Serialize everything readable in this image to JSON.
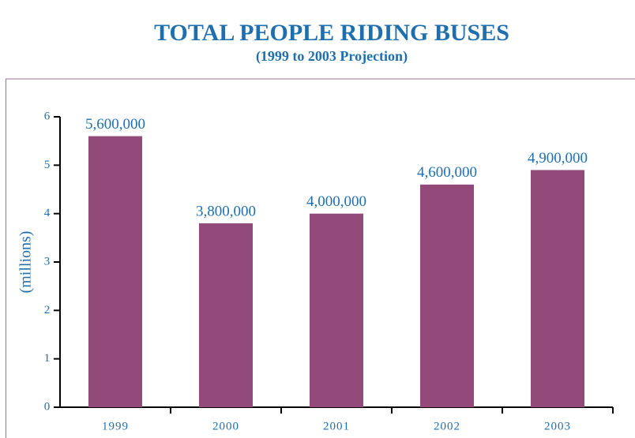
{
  "chart_data": {
    "type": "bar",
    "title": "TOTAL PEOPLE RIDING BUSES",
    "subtitle": "(1999 to 2003 Projection)",
    "ylabel": "(millions)",
    "categories": [
      "1999",
      "2000",
      "2001",
      "2002",
      "2003"
    ],
    "values": [
      5.6,
      3.8,
      4.0,
      4.6,
      4.9
    ],
    "value_labels": [
      "5,600,000",
      "3,800,000",
      "4,000,000",
      "4,600,000",
      "4,900,000"
    ],
    "color": "#924a7a",
    "ylim": [
      0,
      6
    ],
    "yticks": [
      0,
      1,
      2,
      3,
      4,
      5,
      6
    ],
    "grid": false
  }
}
